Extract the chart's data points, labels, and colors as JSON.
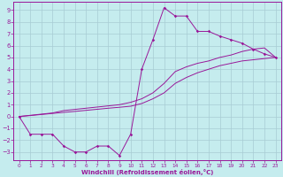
{
  "xlabel": "Windchill (Refroidissement éolien,°C)",
  "bg_color": "#c5ecee",
  "line_color": "#991899",
  "grid_color": "#a8ccd4",
  "xlim": [
    -0.5,
    23.5
  ],
  "ylim": [
    -3.7,
    9.7
  ],
  "xticks": [
    0,
    1,
    2,
    3,
    4,
    5,
    6,
    7,
    8,
    9,
    10,
    11,
    12,
    13,
    14,
    15,
    16,
    17,
    18,
    19,
    20,
    21,
    22,
    23
  ],
  "yticks": [
    -3,
    -2,
    -1,
    0,
    1,
    2,
    3,
    4,
    5,
    6,
    7,
    8,
    9
  ],
  "s1_x": [
    0,
    1,
    2,
    3,
    4,
    5,
    6,
    7,
    8,
    9,
    10,
    11,
    12,
    13,
    14,
    15,
    16,
    17,
    18,
    19,
    20,
    21,
    22,
    23
  ],
  "s1_y": [
    0,
    -1.5,
    -1.5,
    -1.5,
    -2.5,
    -3.0,
    -3.0,
    -2.5,
    -2.5,
    -3.3,
    -1.5,
    4.0,
    6.5,
    9.2,
    8.5,
    8.5,
    7.2,
    7.2,
    6.8,
    6.5,
    6.2,
    5.7,
    5.3,
    5.0
  ],
  "s2_x": [
    0,
    1,
    2,
    3,
    4,
    5,
    6,
    7,
    8,
    9,
    10,
    11,
    12,
    13,
    14,
    15,
    16,
    17,
    18,
    19,
    20,
    21,
    22,
    23
  ],
  "s2_y": [
    0,
    0.1,
    0.2,
    0.3,
    0.5,
    0.6,
    0.7,
    0.8,
    0.9,
    1.0,
    1.2,
    1.5,
    2.0,
    2.8,
    3.8,
    4.2,
    4.5,
    4.7,
    5.0,
    5.2,
    5.5,
    5.7,
    5.8,
    5.0
  ],
  "s3_x": [
    0,
    1,
    2,
    3,
    4,
    5,
    6,
    7,
    8,
    9,
    10,
    11,
    12,
    13,
    14,
    15,
    16,
    17,
    18,
    19,
    20,
    21,
    22,
    23
  ],
  "s3_y": [
    0,
    0.08,
    0.17,
    0.26,
    0.35,
    0.43,
    0.52,
    0.61,
    0.7,
    0.78,
    0.87,
    1.1,
    1.5,
    2.0,
    2.8,
    3.3,
    3.7,
    4.0,
    4.3,
    4.5,
    4.7,
    4.8,
    4.9,
    5.0
  ]
}
